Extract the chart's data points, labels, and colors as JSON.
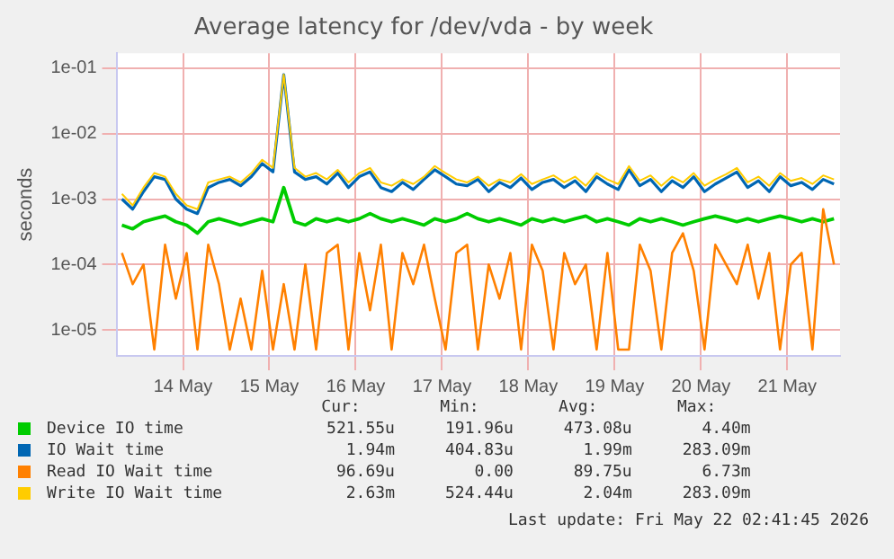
{
  "chart_data": {
    "type": "line",
    "title": "Average latency for /dev/vda - by week",
    "ylabel": "seconds",
    "log": "y",
    "grid": true,
    "legend": "bottom",
    "marker": "none",
    "line_style": "solid",
    "x": [
      "2026-05-13T19:00",
      "2026-05-13T22:00",
      "2026-05-14T01:00",
      "2026-05-14T04:00",
      "2026-05-14T07:00",
      "2026-05-14T10:00",
      "2026-05-14T13:00",
      "2026-05-14T16:00",
      "2026-05-14T19:00",
      "2026-05-14T22:00",
      "2026-05-15T01:00",
      "2026-05-15T04:00",
      "2026-05-15T07:00",
      "2026-05-15T10:00",
      "2026-05-15T13:00",
      "2026-05-15T16:00",
      "2026-05-15T19:00",
      "2026-05-15T22:00",
      "2026-05-16T01:00",
      "2026-05-16T04:00",
      "2026-05-16T07:00",
      "2026-05-16T10:00",
      "2026-05-16T13:00",
      "2026-05-16T16:00",
      "2026-05-16T19:00",
      "2026-05-16T22:00",
      "2026-05-17T01:00",
      "2026-05-17T04:00",
      "2026-05-17T07:00",
      "2026-05-17T10:00",
      "2026-05-17T13:00",
      "2026-05-17T16:00",
      "2026-05-17T19:00",
      "2026-05-17T22:00",
      "2026-05-18T01:00",
      "2026-05-18T04:00",
      "2026-05-18T07:00",
      "2026-05-18T10:00",
      "2026-05-18T13:00",
      "2026-05-18T16:00",
      "2026-05-18T19:00",
      "2026-05-18T22:00",
      "2026-05-19T01:00",
      "2026-05-19T04:00",
      "2026-05-19T07:00",
      "2026-05-19T10:00",
      "2026-05-19T13:00",
      "2026-05-19T16:00",
      "2026-05-19T19:00",
      "2026-05-19T22:00",
      "2026-05-20T01:00",
      "2026-05-20T04:00",
      "2026-05-20T07:00",
      "2026-05-20T10:00",
      "2026-05-20T13:00",
      "2026-05-20T16:00",
      "2026-05-20T19:00",
      "2026-05-20T22:00",
      "2026-05-21T01:00",
      "2026-05-21T04:00",
      "2026-05-21T07:00",
      "2026-05-21T10:00",
      "2026-05-21T13:00",
      "2026-05-21T16:00",
      "2026-05-21T19:00",
      "2026-05-21T22:00",
      "2026-05-22T01:00"
    ],
    "xlim": [
      "2026-05-13T17:30",
      "2026-05-22T02:41"
    ],
    "xticks": [
      {
        "value": "2026-05-14T12:00",
        "label": "14 May"
      },
      {
        "value": "2026-05-15T12:00",
        "label": "15 May"
      },
      {
        "value": "2026-05-16T12:00",
        "label": "16 May"
      },
      {
        "value": "2026-05-17T12:00",
        "label": "17 May"
      },
      {
        "value": "2026-05-18T12:00",
        "label": "18 May"
      },
      {
        "value": "2026-05-19T12:00",
        "label": "19 May"
      },
      {
        "value": "2026-05-20T12:00",
        "label": "20 May"
      },
      {
        "value": "2026-05-21T12:00",
        "label": "21 May"
      }
    ],
    "ylim": [
      4e-06,
      0.17
    ],
    "yticks": [
      {
        "value": 1e-05,
        "label": "1e-05"
      },
      {
        "value": 0.0001,
        "label": "1e-04"
      },
      {
        "value": 0.001,
        "label": "1e-03"
      },
      {
        "value": 0.01,
        "label": "1e-02"
      },
      {
        "value": 0.1,
        "label": "1e-01"
      }
    ],
    "series": [
      {
        "name": "Device IO time",
        "color": "#00cc00",
        "values": [
          0.0004,
          0.00035,
          0.00045,
          0.0005,
          0.00055,
          0.00045,
          0.0004,
          0.0003,
          0.00045,
          0.0005,
          0.00045,
          0.0004,
          0.00045,
          0.0005,
          0.00045,
          0.0015,
          0.00045,
          0.0004,
          0.0005,
          0.00045,
          0.0005,
          0.00045,
          0.0005,
          0.0006,
          0.0005,
          0.00045,
          0.0005,
          0.00045,
          0.0004,
          0.0005,
          0.00045,
          0.0005,
          0.0006,
          0.0005,
          0.00045,
          0.0005,
          0.00045,
          0.0004,
          0.0005,
          0.00045,
          0.0005,
          0.00045,
          0.0005,
          0.00055,
          0.00045,
          0.0005,
          0.00045,
          0.0004,
          0.0005,
          0.00045,
          0.0005,
          0.00045,
          0.0004,
          0.00045,
          0.0005,
          0.00055,
          0.0005,
          0.00045,
          0.0005,
          0.00045,
          0.0005,
          0.00055,
          0.0005,
          0.00045,
          0.0005,
          0.00045,
          0.0005
        ]
      },
      {
        "name": "IO Wait time",
        "color": "#0066b3",
        "values": [
          0.001,
          0.0007,
          0.0013,
          0.0022,
          0.002,
          0.001,
          0.0007,
          0.0006,
          0.0015,
          0.0018,
          0.002,
          0.0016,
          0.0022,
          0.0035,
          0.0026,
          0.08,
          0.0026,
          0.002,
          0.0022,
          0.0017,
          0.0025,
          0.0015,
          0.0022,
          0.0026,
          0.0015,
          0.0013,
          0.0018,
          0.0014,
          0.002,
          0.0028,
          0.0022,
          0.0017,
          0.0016,
          0.002,
          0.0013,
          0.0018,
          0.0015,
          0.0021,
          0.0014,
          0.0018,
          0.002,
          0.0015,
          0.0019,
          0.0013,
          0.0022,
          0.0017,
          0.0014,
          0.0028,
          0.0016,
          0.002,
          0.0013,
          0.0019,
          0.0015,
          0.0022,
          0.0013,
          0.0017,
          0.0021,
          0.0026,
          0.0015,
          0.0019,
          0.0013,
          0.0022,
          0.0016,
          0.0018,
          0.0014,
          0.002,
          0.0017
        ]
      },
      {
        "name": "Read IO Wait time",
        "color": "#ff8000",
        "values": [
          0.00015,
          5e-05,
          0.0001,
          5e-06,
          0.0002,
          3e-05,
          0.00015,
          5e-06,
          0.0002,
          5e-05,
          5e-06,
          3e-05,
          5e-06,
          8e-05,
          5e-06,
          5e-05,
          5e-06,
          0.0001,
          5e-06,
          0.00015,
          0.0002,
          5e-06,
          0.00015,
          2e-05,
          0.0002,
          5e-06,
          0.00015,
          5e-05,
          0.0002,
          3e-05,
          5e-06,
          0.00015,
          0.0002,
          5e-06,
          0.0001,
          3e-05,
          0.00015,
          5e-06,
          0.0002,
          8e-05,
          5e-06,
          0.00015,
          5e-05,
          0.0001,
          5e-06,
          0.00015,
          5e-06,
          5e-06,
          0.0002,
          8e-05,
          5e-06,
          0.00015,
          0.0003,
          8e-05,
          5e-06,
          0.0002,
          0.0001,
          5e-05,
          0.0002,
          3e-05,
          0.00015,
          5e-06,
          0.0001,
          0.00015,
          5e-06,
          0.0007,
          0.0001
        ]
      },
      {
        "name": "Write IO Wait time",
        "color": "#ffcc00",
        "values": [
          0.0012,
          0.0008,
          0.0015,
          0.0025,
          0.0022,
          0.0012,
          0.0008,
          0.0007,
          0.0018,
          0.002,
          0.0022,
          0.0018,
          0.0025,
          0.004,
          0.003,
          0.08,
          0.003,
          0.0022,
          0.0025,
          0.002,
          0.0028,
          0.0018,
          0.0025,
          0.003,
          0.0018,
          0.0016,
          0.002,
          0.0017,
          0.0022,
          0.0032,
          0.0025,
          0.002,
          0.0018,
          0.0022,
          0.0016,
          0.002,
          0.0018,
          0.0024,
          0.0017,
          0.002,
          0.0023,
          0.0018,
          0.0022,
          0.0016,
          0.0025,
          0.002,
          0.0017,
          0.0032,
          0.0019,
          0.0023,
          0.0016,
          0.0022,
          0.0018,
          0.0025,
          0.0016,
          0.002,
          0.0024,
          0.003,
          0.0018,
          0.0022,
          0.0016,
          0.0025,
          0.0019,
          0.0021,
          0.0017,
          0.0023,
          0.002
        ]
      }
    ],
    "annotations": [
      "Cur:",
      "Min:",
      "Avg:",
      "Max:",
      "521.55u",
      "191.96u",
      "473.08u",
      "4.40m",
      "1.94m",
      "404.83u",
      "1.99m",
      "283.09m",
      "96.69u",
      "0.00",
      "89.75u",
      "6.73m",
      "2.63m",
      "524.44u",
      "2.04m",
      "283.09m",
      "Last update: Fri May 22 02:41:45 2026"
    ]
  }
}
